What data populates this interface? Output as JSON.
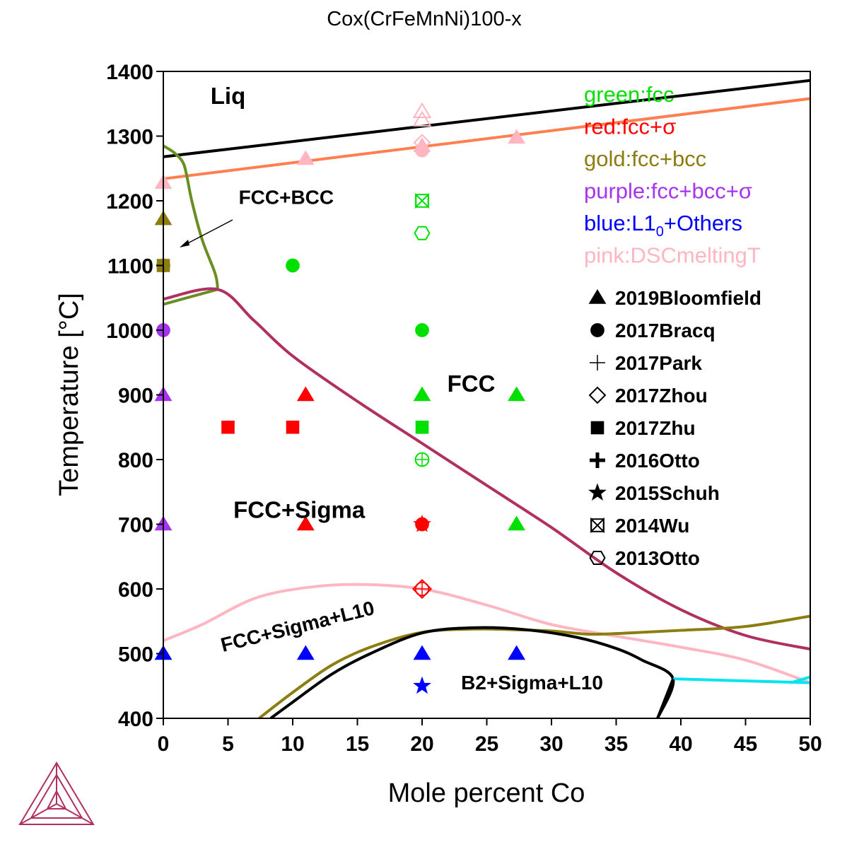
{
  "chart_data": {
    "type": "scatter",
    "title": "Cox(CrFeMnNi)100-x",
    "xlabel": "Mole percent Co",
    "ylabel": "Temperature [°C]",
    "xlim": [
      0,
      50
    ],
    "ylim": [
      400,
      1400
    ],
    "xticks": [
      0,
      5,
      10,
      15,
      20,
      25,
      30,
      35,
      40,
      45,
      50
    ],
    "yticks": [
      400,
      500,
      600,
      700,
      800,
      900,
      1000,
      1100,
      1200,
      1300,
      1400
    ],
    "grid": false,
    "regions": [
      {
        "label": "Liq",
        "x": 5,
        "y": 1350
      },
      {
        "label": "FCC+BCC",
        "x": 9.5,
        "y": 1195
      },
      {
        "label": "FCC",
        "x": 23.8,
        "y": 905
      },
      {
        "label": "FCC+Sigma",
        "x": 10.5,
        "y": 710
      },
      {
        "label": "FCC+Sigma+L10",
        "x": 10.5,
        "y": 532
      },
      {
        "label": "B2+Sigma+L10",
        "x": 28.5,
        "y": 445
      }
    ],
    "color_legend": [
      {
        "label": "green:fcc",
        "color": "#00e000"
      },
      {
        "label": "red:fcc+σ",
        "color": "#ff0000"
      },
      {
        "label": "gold:fcc+bcc",
        "color": "#8b7d10"
      },
      {
        "label": "purple:fcc+bcc+σ",
        "color": "#a633ee"
      },
      {
        "label": "blue:L1",
        "sub": "0",
        "suffix": "+Others",
        "color": "#0000ff"
      },
      {
        "label": "pink:DSCmeltingT",
        "color": "#ffb6c1"
      }
    ],
    "marker_legend": [
      {
        "label": "2019Bloomfield",
        "marker": "triangle"
      },
      {
        "label": "2017Bracq",
        "marker": "circle"
      },
      {
        "label": "2017Park",
        "marker": "plus-thin"
      },
      {
        "label": "2017Zhou",
        "marker": "diamond-open"
      },
      {
        "label": "2017Zhu",
        "marker": "square"
      },
      {
        "label": "2016Otto",
        "marker": "plus-bold"
      },
      {
        "label": "2015Schuh",
        "marker": "star"
      },
      {
        "label": "2014Wu",
        "marker": "bowtie"
      },
      {
        "label": "2013Otto",
        "marker": "hexagon-open"
      }
    ],
    "curves": [
      {
        "name": "liquidus",
        "color": "#000000",
        "points": [
          [
            0,
            1268
          ],
          [
            50,
            1386
          ]
        ]
      },
      {
        "name": "solidus",
        "color": "#ff7f50",
        "points": [
          [
            0,
            1234
          ],
          [
            50,
            1358
          ]
        ]
      },
      {
        "name": "bcc-solvus",
        "color": "#6b8e23",
        "points": [
          [
            0,
            1285
          ],
          [
            0.8,
            1275
          ],
          [
            1.5,
            1260
          ],
          [
            1.8,
            1240
          ],
          [
            2.2,
            1200
          ],
          [
            3,
            1140
          ],
          [
            4,
            1088
          ],
          [
            4.2,
            1065
          ]
        ]
      },
      {
        "name": "bcc-lower",
        "color": "#6b8e23",
        "points": [
          [
            0,
            1040
          ],
          [
            4.2,
            1063
          ]
        ]
      },
      {
        "name": "sigma-solvus",
        "color": "#b03060",
        "points": [
          [
            0,
            1048
          ],
          [
            4.2,
            1063
          ],
          [
            7,
            1015
          ],
          [
            10,
            960
          ],
          [
            15,
            890
          ],
          [
            20,
            825
          ],
          [
            25,
            760
          ],
          [
            30,
            695
          ],
          [
            35,
            625
          ],
          [
            40,
            568
          ],
          [
            45,
            528
          ],
          [
            50,
            507
          ]
        ]
      },
      {
        "name": "l10-solvus",
        "color": "#ffb6c1",
        "points": [
          [
            0,
            520
          ],
          [
            3,
            545
          ],
          [
            7,
            585
          ],
          [
            11,
            602
          ],
          [
            15,
            607
          ],
          [
            20,
            600
          ],
          [
            25,
            575
          ],
          [
            30,
            545
          ],
          [
            35,
            527
          ],
          [
            40,
            510
          ],
          [
            45,
            490
          ],
          [
            50,
            455
          ]
        ]
      },
      {
        "name": "b2-boundary-gold",
        "color": "#8b7d10",
        "points": [
          [
            7.4,
            400
          ],
          [
            10,
            440
          ],
          [
            13,
            482
          ],
          [
            16,
            510
          ],
          [
            20,
            533
          ],
          [
            24,
            538
          ],
          [
            27,
            537
          ],
          [
            30,
            535
          ],
          [
            33,
            530
          ],
          [
            36,
            532
          ],
          [
            40,
            536
          ],
          [
            45,
            542
          ],
          [
            50,
            558
          ]
        ]
      },
      {
        "name": "b2-boundary-black",
        "color": "#000000",
        "points": [
          [
            8.3,
            400
          ],
          [
            10,
            425
          ],
          [
            13,
            468
          ],
          [
            16,
            500
          ],
          [
            20,
            532
          ],
          [
            24,
            540
          ],
          [
            28,
            537
          ],
          [
            32,
            525
          ],
          [
            35,
            508
          ],
          [
            37,
            490
          ],
          [
            39.4,
            461
          ],
          [
            38.2,
            400
          ]
        ]
      },
      {
        "name": "cyan",
        "color": "#00e5ee",
        "points": [
          [
            39.4,
            461
          ],
          [
            50,
            455
          ]
        ]
      },
      {
        "name": "cyan-tip",
        "color": "#00e5ee",
        "points": [
          [
            48.5,
            455
          ],
          [
            50,
            464
          ]
        ]
      },
      {
        "name": "b2-link",
        "color": "#000000",
        "points": [
          [
            39.4,
            461
          ],
          [
            38.2,
            400
          ]
        ]
      }
    ],
    "points": [
      {
        "x": 0,
        "y": 1228,
        "marker": "triangle",
        "color": "#ffb6c1"
      },
      {
        "x": 11,
        "y": 1265,
        "marker": "triangle",
        "color": "#ffb6c1"
      },
      {
        "x": 27.3,
        "y": 1298,
        "marker": "triangle",
        "color": "#ffb6c1"
      },
      {
        "x": 20,
        "y": 1338,
        "marker": "triangle-open",
        "color": "#ffb6c1"
      },
      {
        "x": 20,
        "y": 1325,
        "marker": "triangle-open",
        "color": "#ffb6c1"
      },
      {
        "x": 20,
        "y": 1290,
        "marker": "diamond-open",
        "color": "#ffb6c1"
      },
      {
        "x": 20,
        "y": 1278,
        "marker": "circle",
        "color": "#ffb6c1"
      },
      {
        "x": 20,
        "y": 1285,
        "marker": "triangle",
        "color": "#ffb6c1"
      },
      {
        "x": 20,
        "y": 1200,
        "marker": "bowtie",
        "color": "#00e000"
      },
      {
        "x": 20,
        "y": 1150,
        "marker": "hexagon-open",
        "color": "#00e000"
      },
      {
        "x": 0,
        "y": 1172,
        "marker": "triangle",
        "color": "#8b7d10"
      },
      {
        "x": 0,
        "y": 1100,
        "marker": "square",
        "color": "#8b7d10"
      },
      {
        "x": 0,
        "y": 1100,
        "marker": "circle",
        "color": "#8b7d10"
      },
      {
        "x": 10,
        "y": 1100,
        "marker": "circle",
        "color": "#00e000"
      },
      {
        "x": 0,
        "y": 1000,
        "marker": "circle",
        "color": "#a633ee"
      },
      {
        "x": 20,
        "y": 1000,
        "marker": "circle",
        "color": "#00e000"
      },
      {
        "x": 0,
        "y": 900,
        "marker": "triangle",
        "color": "#a633ee"
      },
      {
        "x": 11,
        "y": 900,
        "marker": "triangle",
        "color": "#ff0000"
      },
      {
        "x": 20,
        "y": 900,
        "marker": "triangle",
        "color": "#00e000"
      },
      {
        "x": 27.3,
        "y": 900,
        "marker": "triangle",
        "color": "#00e000"
      },
      {
        "x": 5,
        "y": 850,
        "marker": "square",
        "color": "#ff0000"
      },
      {
        "x": 10,
        "y": 850,
        "marker": "square",
        "color": "#ff0000"
      },
      {
        "x": 20,
        "y": 850,
        "marker": "square",
        "color": "#00e000"
      },
      {
        "x": 20,
        "y": 800,
        "marker": "crosshair-circle",
        "color": "#00e000"
      },
      {
        "x": 0,
        "y": 700,
        "marker": "triangle",
        "color": "#a633ee"
      },
      {
        "x": 11,
        "y": 700,
        "marker": "triangle",
        "color": "#ff0000"
      },
      {
        "x": 20,
        "y": 700,
        "marker": "star",
        "color": "#ff0000"
      },
      {
        "x": 20,
        "y": 700,
        "marker": "circle",
        "color": "#ff0000"
      },
      {
        "x": 27.3,
        "y": 700,
        "marker": "triangle",
        "color": "#00e000"
      },
      {
        "x": 20,
        "y": 600,
        "marker": "crossdiamond-circle",
        "color": "#ff0000"
      },
      {
        "x": 0,
        "y": 500,
        "marker": "triangle",
        "color": "#0000ff"
      },
      {
        "x": 11,
        "y": 500,
        "marker": "triangle",
        "color": "#0000ff"
      },
      {
        "x": 20,
        "y": 500,
        "marker": "triangle",
        "color": "#0000ff"
      },
      {
        "x": 27.3,
        "y": 500,
        "marker": "triangle",
        "color": "#0000ff"
      },
      {
        "x": 20,
        "y": 450,
        "marker": "star",
        "color": "#0000ff"
      }
    ]
  }
}
